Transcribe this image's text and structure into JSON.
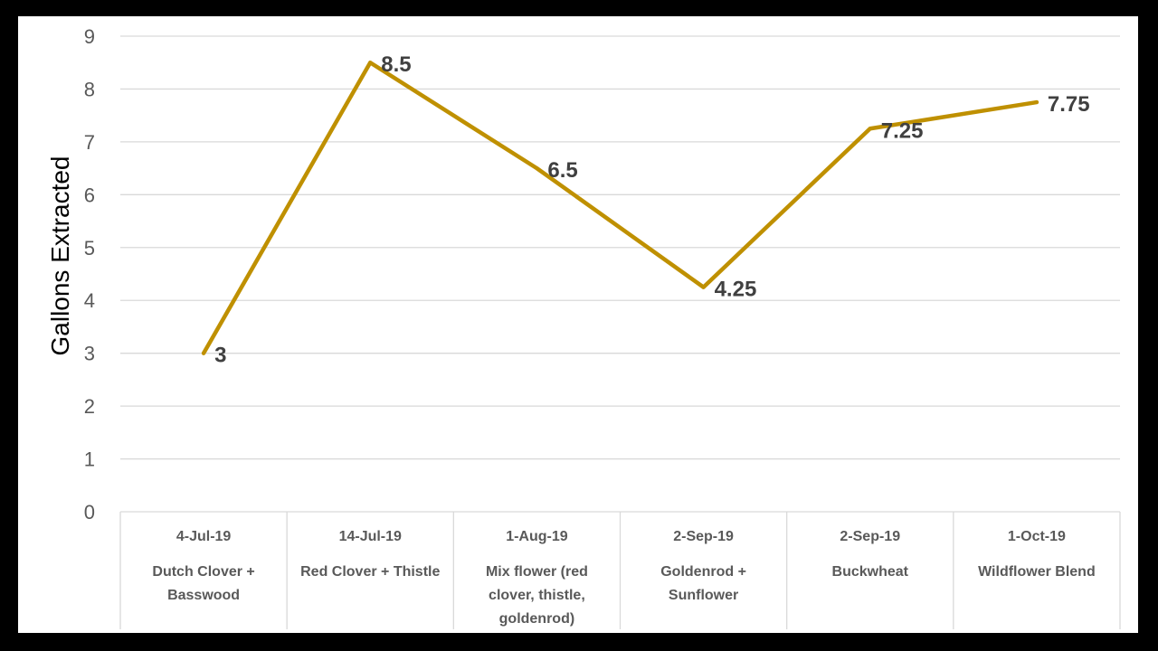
{
  "chart_data": {
    "type": "line",
    "title": "",
    "xlabel": "",
    "ylabel": "Gallons Extracted",
    "ylim": [
      0,
      9
    ],
    "yticks": [
      0,
      1,
      2,
      3,
      4,
      5,
      6,
      7,
      8,
      9
    ],
    "grid": true,
    "legend": "none",
    "categories": [
      {
        "date": "4-Jul-19",
        "name": [
          "Dutch Clover +",
          "Basswood"
        ]
      },
      {
        "date": "14-Jul-19",
        "name": [
          "Red Clover + Thistle"
        ]
      },
      {
        "date": "1-Aug-19",
        "name": [
          "Mix flower (red",
          "clover, thistle,",
          "goldenrod)"
        ]
      },
      {
        "date": "2-Sep-19",
        "name": [
          "Goldenrod +",
          "Sunflower"
        ]
      },
      {
        "date": "2-Sep-19",
        "name": [
          "Buckwheat"
        ]
      },
      {
        "date": "1-Oct-19",
        "name": [
          "Wildflower Blend"
        ]
      }
    ],
    "series": [
      {
        "values": [
          3,
          8.5,
          6.5,
          4.25,
          7.25,
          7.75
        ],
        "labels": [
          "3",
          "8.5",
          "6.5",
          "4.25",
          "7.25",
          "7.75"
        ],
        "color": "#BF9000"
      }
    ]
  }
}
